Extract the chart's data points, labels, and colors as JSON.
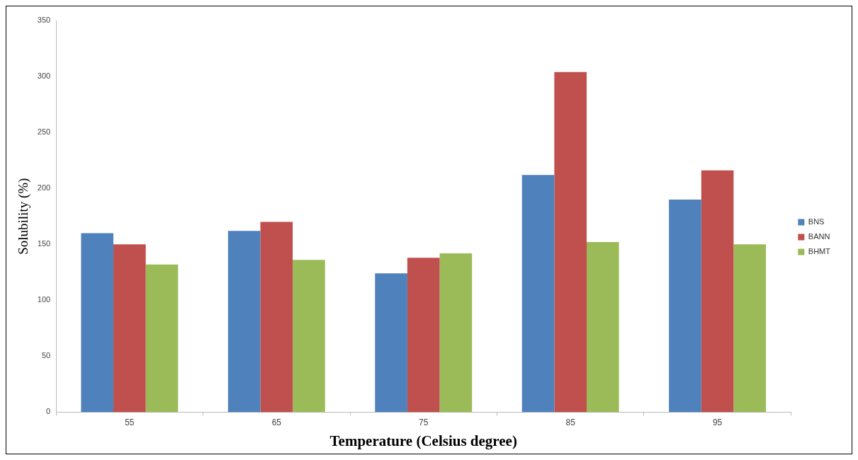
{
  "chart_data": {
    "type": "bar",
    "xlabel": "Temperature (Celsius degree)",
    "ylabel": "Solubility (%)",
    "categories": [
      "55",
      "65",
      "75",
      "85",
      "95"
    ],
    "series": [
      {
        "name": "BNS",
        "color": "#4f81bd",
        "values": [
          160,
          162,
          124,
          212,
          190
        ]
      },
      {
        "name": "BANN",
        "color": "#c0504d",
        "values": [
          150,
          170,
          138,
          304,
          216
        ]
      },
      {
        "name": "BHMT",
        "color": "#9bbb59",
        "values": [
          132,
          136,
          142,
          152,
          150
        ]
      }
    ],
    "ylim": [
      0,
      350
    ],
    "yticks": [
      0,
      50,
      100,
      150,
      200,
      250,
      300,
      350
    ],
    "grid": false,
    "legend": "right"
  }
}
